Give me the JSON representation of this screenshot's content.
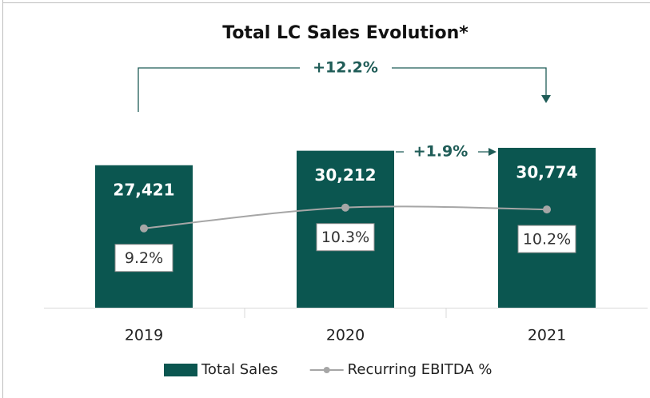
{
  "chart_data": {
    "type": "bar",
    "title": "Total LC Sales Evolution*",
    "categories": [
      "2019",
      "2020",
      "2021"
    ],
    "series": [
      {
        "name": "Total Sales",
        "type": "bar",
        "color": "#0b5650",
        "values": [
          27421,
          30212,
          30774
        ],
        "value_labels": [
          "27,421",
          "30,212",
          "30,774"
        ]
      },
      {
        "name": "Recurring EBITDA %",
        "type": "line",
        "axis": "y2",
        "color": "#a6a6a6",
        "values": [
          9.2,
          10.3,
          10.2
        ],
        "value_labels": [
          "9.2%",
          "10.3%",
          "10.2%"
        ]
      }
    ],
    "ylim": [
      0,
      40000
    ],
    "y2lim": [
      5,
      16
    ],
    "annotations": [
      "+12.2%",
      "+1.9%"
    ],
    "legend": "bottom"
  }
}
